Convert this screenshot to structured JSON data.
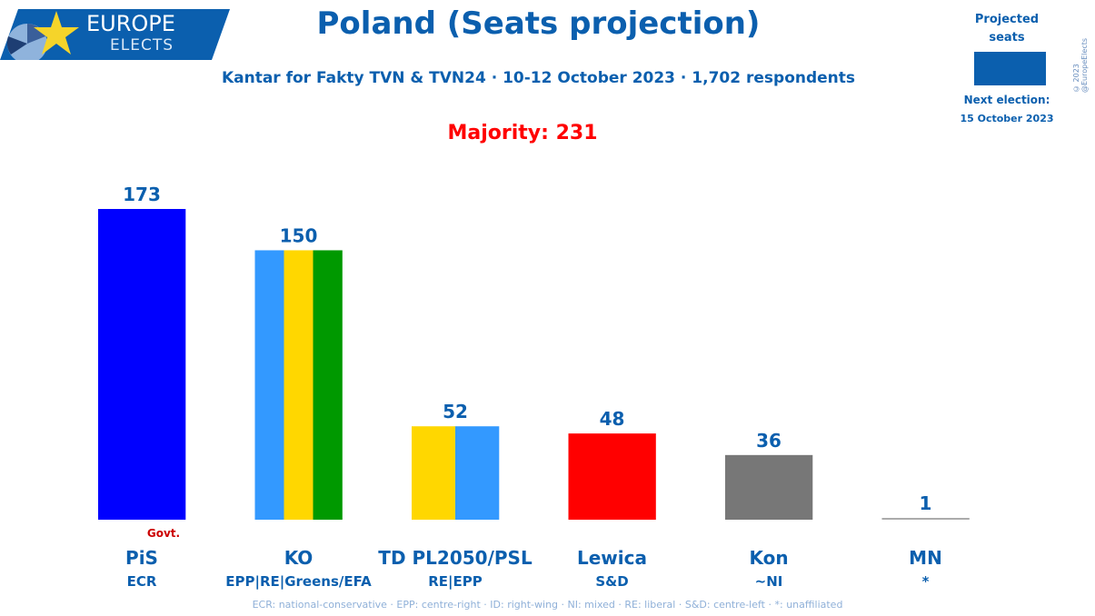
{
  "logo": {
    "line1": "EUROPE",
    "line2": "ELECTS"
  },
  "header": {
    "title": "Poland (Seats projection)",
    "subtitle": "Kantar for Fakty TVN & TVN24 · 10-12 October 2023 · 1,702 respondents",
    "majority": "Majority: 231"
  },
  "legend": {
    "label": "Projected seats",
    "swatch_color": "#0b5fae",
    "next_election_label": "Next election:",
    "next_election_date": "15 October 2023"
  },
  "copyright": "© 2023 @EuropeElects",
  "footnote": "ECR: national-conservative · EPP: centre-right · ID: right-wing · NI: mixed · RE: liberal · S&D: centre-left · *: unaffiliated",
  "chart_data": {
    "type": "bar",
    "categories": [
      "PiS",
      "KO",
      "TD PL2050/PSL",
      "Lewica",
      "Kon",
      "MN"
    ],
    "groups": [
      "ECR",
      "EPP|RE|Greens/EFA",
      "RE|EPP",
      "S&D",
      "~NI",
      "*"
    ],
    "values": [
      173,
      150,
      52,
      48,
      36,
      1
    ],
    "colors": [
      [
        "#0000ff"
      ],
      [
        "#3399ff",
        "#ffd700",
        "#009900"
      ],
      [
        "#ffd700",
        "#3399ff"
      ],
      [
        "#ff0000"
      ],
      [
        "#777777"
      ],
      [
        "#aaaaaa"
      ]
    ],
    "annotation": {
      "category": "PiS",
      "text": "Govt."
    },
    "ylim": [
      0,
      173
    ]
  }
}
